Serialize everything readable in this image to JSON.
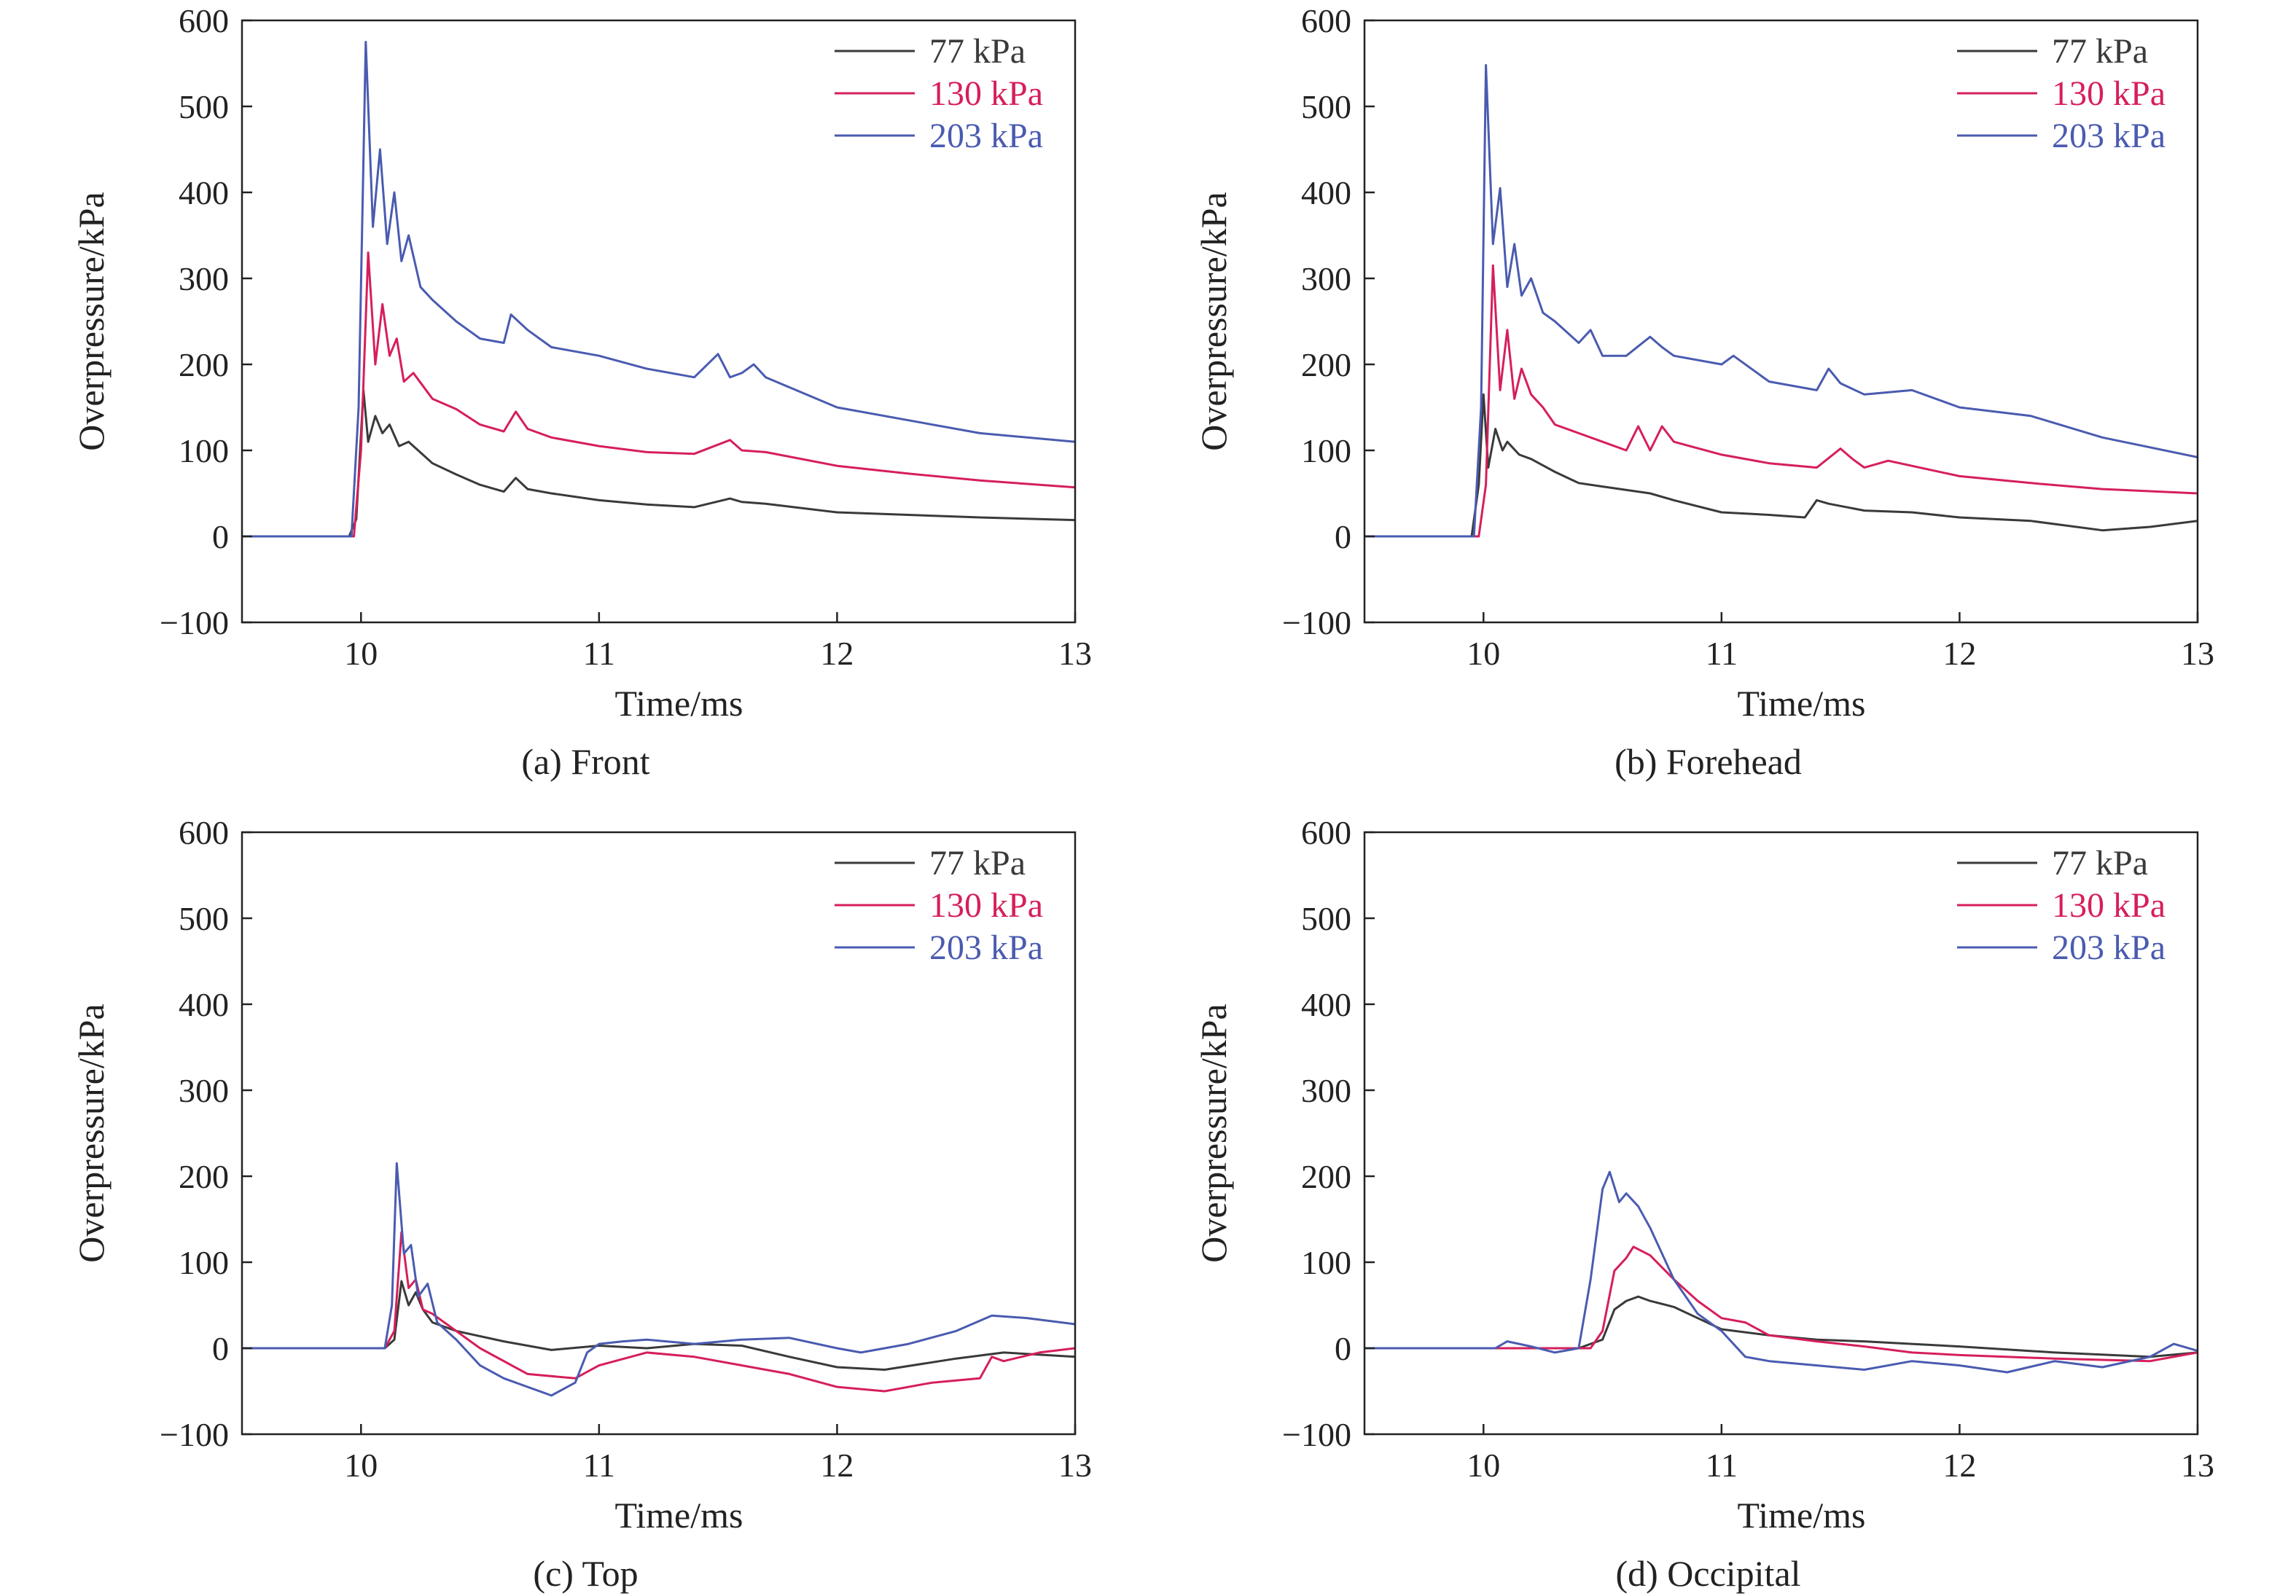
{
  "figure": {
    "colors": {
      "s77": "#3a3a3a",
      "s130": "#d61f5a",
      "s203": "#4a5bb0",
      "axis": "#222222"
    }
  },
  "chart_data": [
    {
      "type": "line",
      "caption": "(a) Front",
      "xlabel": "Time/ms",
      "ylabel": "Overpressure/kPa",
      "xlim": [
        9.5,
        13
      ],
      "ylim": [
        -100,
        600
      ],
      "xticks": [
        10,
        11,
        12,
        13
      ],
      "yticks": [
        -100,
        0,
        100,
        200,
        300,
        400,
        500,
        600
      ],
      "legend_position": "top-right",
      "grid": false,
      "series": [
        {
          "name": "77 kPa",
          "color": "#3a3a3a",
          "x": [
            9.5,
            9.95,
            9.98,
            10.01,
            10.03,
            10.06,
            10.09,
            10.12,
            10.16,
            10.2,
            10.3,
            10.4,
            10.5,
            10.6,
            10.65,
            10.7,
            10.8,
            11.0,
            11.2,
            11.4,
            11.55,
            11.6,
            11.7,
            12.0,
            12.3,
            12.6,
            13.0
          ],
          "y": [
            0,
            0,
            20,
            170,
            110,
            140,
            120,
            130,
            105,
            110,
            85,
            72,
            60,
            52,
            68,
            55,
            50,
            42,
            37,
            34,
            44,
            40,
            38,
            28,
            25,
            22,
            19
          ]
        },
        {
          "name": "130 kPa",
          "color": "#d61f5a",
          "x": [
            9.5,
            9.97,
            10.0,
            10.03,
            10.06,
            10.09,
            10.12,
            10.15,
            10.18,
            10.22,
            10.3,
            10.4,
            10.5,
            10.6,
            10.65,
            10.7,
            10.8,
            11.0,
            11.2,
            11.4,
            11.55,
            11.6,
            11.7,
            12.0,
            12.3,
            12.6,
            13.0
          ],
          "y": [
            0,
            0,
            100,
            330,
            200,
            270,
            210,
            230,
            180,
            190,
            160,
            148,
            130,
            122,
            145,
            125,
            115,
            105,
            98,
            96,
            112,
            100,
            98,
            82,
            73,
            65,
            57
          ]
        },
        {
          "name": "203 kPa",
          "color": "#4a5bb0",
          "x": [
            9.5,
            9.96,
            9.99,
            10.02,
            10.05,
            10.08,
            10.11,
            10.14,
            10.17,
            10.2,
            10.25,
            10.3,
            10.4,
            10.5,
            10.6,
            10.63,
            10.7,
            10.8,
            11.0,
            11.2,
            11.4,
            11.5,
            11.55,
            11.6,
            11.65,
            11.7,
            12.0,
            12.3,
            12.6,
            13.0
          ],
          "y": [
            0,
            0,
            150,
            575,
            360,
            450,
            340,
            400,
            320,
            350,
            290,
            275,
            250,
            230,
            225,
            258,
            240,
            220,
            210,
            195,
            185,
            212,
            185,
            190,
            200,
            185,
            150,
            135,
            120,
            110
          ]
        }
      ]
    },
    {
      "type": "line",
      "caption": "(b) Forehead",
      "xlabel": "Time/ms",
      "ylabel": "Overpressure/kPa",
      "xlim": [
        9.5,
        13
      ],
      "ylim": [
        -100,
        600
      ],
      "xticks": [
        10,
        11,
        12,
        13
      ],
      "yticks": [
        -100,
        0,
        100,
        200,
        300,
        400,
        500,
        600
      ],
      "legend_position": "top-right",
      "grid": false,
      "series": [
        {
          "name": "77 kPa",
          "color": "#3a3a3a",
          "x": [
            9.5,
            9.95,
            9.98,
            10.0,
            10.02,
            10.05,
            10.08,
            10.1,
            10.15,
            10.2,
            10.3,
            10.4,
            10.5,
            10.7,
            10.8,
            11.0,
            11.2,
            11.35,
            11.4,
            11.45,
            11.6,
            11.8,
            12.0,
            12.3,
            12.6,
            12.8,
            13.0
          ],
          "y": [
            0,
            0,
            60,
            165,
            80,
            125,
            100,
            110,
            95,
            90,
            75,
            62,
            58,
            50,
            42,
            28,
            25,
            22,
            42,
            38,
            30,
            28,
            22,
            18,
            7,
            11,
            18
          ]
        },
        {
          "name": "130 kPa",
          "color": "#d61f5a",
          "x": [
            9.5,
            9.98,
            10.01,
            10.04,
            10.07,
            10.1,
            10.13,
            10.16,
            10.2,
            10.25,
            10.3,
            10.4,
            10.5,
            10.6,
            10.65,
            10.7,
            10.75,
            10.8,
            11.0,
            11.2,
            11.4,
            11.5,
            11.55,
            11.6,
            11.7,
            12.0,
            12.3,
            12.6,
            13.0
          ],
          "y": [
            0,
            0,
            60,
            315,
            170,
            240,
            160,
            195,
            165,
            150,
            130,
            120,
            110,
            100,
            128,
            100,
            128,
            110,
            95,
            85,
            80,
            102,
            90,
            80,
            88,
            70,
            62,
            55,
            50
          ]
        },
        {
          "name": "203 kPa",
          "color": "#4a5bb0",
          "x": [
            9.5,
            9.96,
            9.99,
            10.01,
            10.04,
            10.07,
            10.1,
            10.13,
            10.16,
            10.2,
            10.25,
            10.3,
            10.4,
            10.45,
            10.5,
            10.6,
            10.7,
            10.75,
            10.8,
            11.0,
            11.05,
            11.2,
            11.4,
            11.45,
            11.5,
            11.6,
            11.8,
            12.0,
            12.3,
            12.6,
            13.0
          ],
          "y": [
            0,
            0,
            150,
            548,
            340,
            405,
            290,
            340,
            280,
            300,
            260,
            250,
            225,
            240,
            210,
            210,
            232,
            220,
            210,
            200,
            210,
            180,
            170,
            195,
            178,
            165,
            170,
            150,
            140,
            115,
            92
          ]
        }
      ]
    },
    {
      "type": "line",
      "caption": "(c) Top",
      "xlabel": "Time/ms",
      "ylabel": "Overpressure/kPa",
      "xlim": [
        9.5,
        13
      ],
      "ylim": [
        -100,
        600
      ],
      "xticks": [
        10,
        11,
        12,
        13
      ],
      "yticks": [
        -100,
        0,
        100,
        200,
        300,
        400,
        500,
        600
      ],
      "legend_position": "top-right",
      "grid": false,
      "series": [
        {
          "name": "77 kPa",
          "color": "#3a3a3a",
          "x": [
            9.5,
            10.1,
            10.14,
            10.17,
            10.2,
            10.23,
            10.26,
            10.3,
            10.4,
            10.6,
            10.8,
            11.0,
            11.2,
            11.4,
            11.6,
            11.8,
            12.0,
            12.2,
            12.5,
            12.7,
            13.0
          ],
          "y": [
            0,
            0,
            10,
            78,
            50,
            65,
            45,
            30,
            20,
            8,
            -2,
            3,
            0,
            5,
            3,
            -10,
            -22,
            -25,
            -12,
            -5,
            -10
          ]
        },
        {
          "name": "130 kPa",
          "color": "#d61f5a",
          "x": [
            9.5,
            10.1,
            10.14,
            10.17,
            10.2,
            10.23,
            10.26,
            10.3,
            10.4,
            10.5,
            10.7,
            10.9,
            11.0,
            11.2,
            11.4,
            11.6,
            11.8,
            12.0,
            12.2,
            12.4,
            12.6,
            12.65,
            12.7,
            12.85,
            13.0
          ],
          "y": [
            0,
            0,
            20,
            135,
            70,
            80,
            45,
            40,
            20,
            0,
            -30,
            -35,
            -20,
            -5,
            -10,
            -20,
            -30,
            -45,
            -50,
            -40,
            -35,
            -10,
            -15,
            -5,
            0
          ]
        },
        {
          "name": "203 kPa",
          "color": "#4a5bb0",
          "x": [
            9.5,
            10.1,
            10.13,
            10.15,
            10.18,
            10.21,
            10.24,
            10.28,
            10.32,
            10.4,
            10.5,
            10.6,
            10.7,
            10.8,
            10.9,
            10.95,
            11.0,
            11.1,
            11.2,
            11.4,
            11.6,
            11.8,
            12.0,
            12.1,
            12.3,
            12.5,
            12.65,
            12.8,
            13.0
          ],
          "y": [
            0,
            0,
            50,
            215,
            110,
            120,
            60,
            75,
            30,
            10,
            -20,
            -35,
            -45,
            -55,
            -40,
            -5,
            5,
            8,
            10,
            5,
            10,
            12,
            0,
            -5,
            5,
            20,
            38,
            35,
            28
          ]
        }
      ]
    },
    {
      "type": "line",
      "caption": "(d) Occipital",
      "xlabel": "Time/ms",
      "ylabel": "Overpressure/kPa",
      "xlim": [
        9.5,
        13
      ],
      "ylim": [
        -100,
        600
      ],
      "xticks": [
        10,
        11,
        12,
        13
      ],
      "yticks": [
        -100,
        0,
        100,
        200,
        300,
        400,
        500,
        600
      ],
      "legend_position": "top-right",
      "grid": false,
      "series": [
        {
          "name": "77 kPa",
          "color": "#3a3a3a",
          "x": [
            9.5,
            10.4,
            10.5,
            10.55,
            10.6,
            10.65,
            10.7,
            10.8,
            10.9,
            11.0,
            11.2,
            11.4,
            11.6,
            11.8,
            12.0,
            12.4,
            12.8,
            13.0
          ],
          "y": [
            0,
            0,
            10,
            45,
            55,
            60,
            55,
            48,
            35,
            22,
            15,
            10,
            8,
            5,
            2,
            -5,
            -10,
            -5
          ]
        },
        {
          "name": "130 kPa",
          "color": "#d61f5a",
          "x": [
            9.5,
            10.45,
            10.5,
            10.55,
            10.6,
            10.63,
            10.7,
            10.8,
            10.9,
            11.0,
            11.1,
            11.2,
            11.4,
            11.6,
            11.8,
            12.0,
            12.4,
            12.8,
            13.0
          ],
          "y": [
            0,
            0,
            20,
            90,
            105,
            118,
            108,
            80,
            55,
            35,
            30,
            15,
            8,
            2,
            -5,
            -8,
            -12,
            -15,
            -5
          ]
        },
        {
          "name": "203 kPa",
          "color": "#4a5bb0",
          "x": [
            9.5,
            10.05,
            10.1,
            10.2,
            10.3,
            10.4,
            10.45,
            10.5,
            10.53,
            10.57,
            10.6,
            10.65,
            10.7,
            10.8,
            10.9,
            11.0,
            11.1,
            11.2,
            11.4,
            11.6,
            11.8,
            12.0,
            12.2,
            12.4,
            12.6,
            12.8,
            12.9,
            13.0
          ],
          "y": [
            0,
            0,
            8,
            2,
            -5,
            0,
            80,
            185,
            205,
            170,
            180,
            165,
            140,
            80,
            40,
            20,
            -10,
            -15,
            -20,
            -25,
            -15,
            -20,
            -28,
            -15,
            -22,
            -10,
            5,
            -3
          ]
        }
      ]
    }
  ]
}
